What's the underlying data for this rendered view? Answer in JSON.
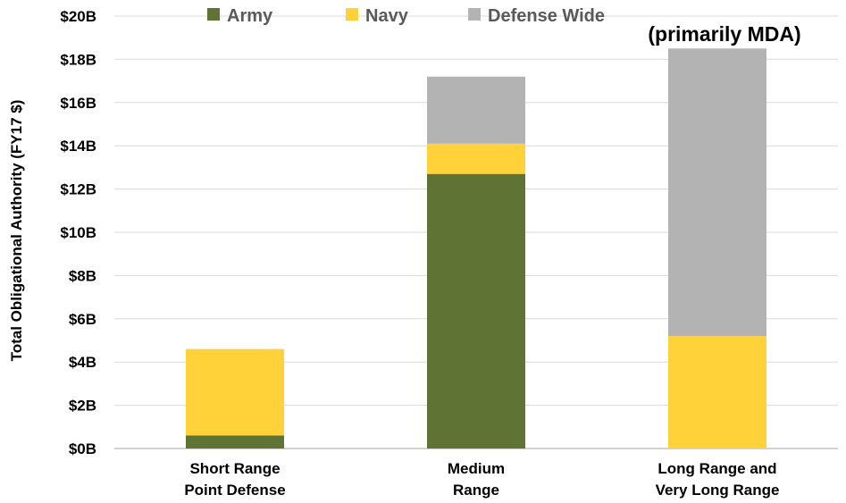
{
  "chart_data": {
    "type": "bar",
    "stacked": true,
    "title": "",
    "xlabel": "",
    "ylabel": "Total Obligational Authority (FY17 $)",
    "ylim": [
      0,
      20
    ],
    "y_ticks": [
      "$0B",
      "$2B",
      "$4B",
      "$6B",
      "$8B",
      "$10B",
      "$12B",
      "$14B",
      "$16B",
      "$18B",
      "$20B"
    ],
    "grid": true,
    "legend_position": "top",
    "categories": [
      [
        "Short Range",
        "Point Defense"
      ],
      [
        "Medium",
        "Range"
      ],
      [
        "Long Range and",
        "Very Long Range"
      ]
    ],
    "series": [
      {
        "name": "Army",
        "color": "#5f7334",
        "values": [
          0.6,
          12.7,
          0
        ]
      },
      {
        "name": "Navy",
        "color": "#ffd23a",
        "values": [
          4.0,
          1.4,
          5.2
        ]
      },
      {
        "name": "Defense Wide",
        "color": "#b3b3b3",
        "values": [
          0,
          3.1,
          13.3
        ]
      }
    ],
    "annotations": [
      {
        "text": "(primarily MDA)",
        "category_index": 2
      }
    ]
  }
}
